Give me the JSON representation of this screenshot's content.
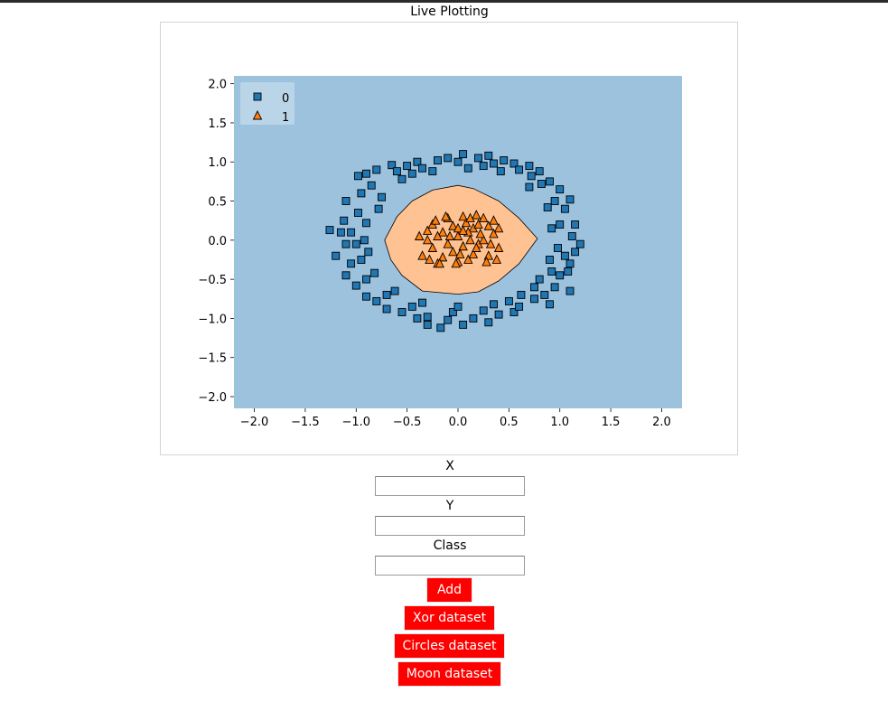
{
  "page": {
    "title": "Live Plotting"
  },
  "form": {
    "x_label": "X",
    "x_value": "",
    "y_label": "Y",
    "y_value": "",
    "class_label": "Class",
    "class_value": ""
  },
  "buttons": {
    "add": "Add",
    "xor": "Xor dataset",
    "circles": "Circles dataset",
    "moon": "Moon dataset"
  },
  "colors": {
    "region_0": "#9dc2de",
    "region_1": "#ffc393",
    "class_0": "#1f77b4",
    "class_1": "#ff7f0e",
    "button_bg": "#ff0000"
  },
  "chart_data": {
    "type": "scatter",
    "title": "",
    "xlabel": "",
    "ylabel": "",
    "xlim": [
      -2.2,
      2.2
    ],
    "ylim": [
      -2.15,
      2.1
    ],
    "xticks": [
      "−2.0",
      "−1.5",
      "−1.0",
      "−0.5",
      "0.0",
      "0.5",
      "1.0",
      "1.5",
      "2.0"
    ],
    "xtick_values": [
      -2.0,
      -1.5,
      -1.0,
      -0.5,
      0.0,
      0.5,
      1.0,
      1.5,
      2.0
    ],
    "yticks": [
      "2.0",
      "1.5",
      "1.0",
      "0.5",
      "0.0",
      "−0.5",
      "−1.0",
      "−1.5",
      "−2.0"
    ],
    "ytick_values": [
      2.0,
      1.5,
      1.0,
      0.5,
      0.0,
      -0.5,
      -1.0,
      -1.5,
      -2.0
    ],
    "grid": false,
    "legend": {
      "placement": "top-left",
      "entries": [
        {
          "label": "0",
          "marker": "square"
        },
        {
          "label": "1",
          "marker": "triangle"
        }
      ]
    },
    "decision_region_1": [
      [
        -0.72,
        0.0
      ],
      [
        -0.6,
        0.3
      ],
      [
        -0.45,
        0.5
      ],
      [
        -0.25,
        0.64
      ],
      [
        0.0,
        0.7
      ],
      [
        0.15,
        0.66
      ],
      [
        0.4,
        0.5
      ],
      [
        0.6,
        0.28
      ],
      [
        0.78,
        0.02
      ],
      [
        0.6,
        -0.3
      ],
      [
        0.4,
        -0.52
      ],
      [
        0.2,
        -0.66
      ],
      [
        0.0,
        -0.69
      ],
      [
        -0.35,
        -0.65
      ],
      [
        -0.55,
        -0.45
      ],
      [
        -0.66,
        -0.25
      ]
    ],
    "series": [
      {
        "name": "0",
        "marker": "square",
        "points": [
          [
            -1.26,
            0.13
          ],
          [
            -1.1,
            0.5
          ],
          [
            -0.9,
            0.85
          ],
          [
            -0.65,
            0.96
          ],
          [
            -0.4,
            1.0
          ],
          [
            -0.1,
            1.05
          ],
          [
            0.05,
            1.1
          ],
          [
            0.3,
            1.08
          ],
          [
            0.55,
            0.98
          ],
          [
            0.8,
            0.88
          ],
          [
            1.0,
            0.65
          ],
          [
            1.1,
            0.52
          ],
          [
            1.15,
            0.2
          ],
          [
            1.2,
            -0.05
          ],
          [
            1.1,
            -0.3
          ],
          [
            1.1,
            -0.65
          ],
          [
            0.95,
            -0.6
          ],
          [
            0.75,
            -0.75
          ],
          [
            0.55,
            -0.92
          ],
          [
            0.3,
            -1.05
          ],
          [
            0.05,
            -1.08
          ],
          [
            -0.17,
            -1.12
          ],
          [
            -0.4,
            -1.0
          ],
          [
            -0.7,
            -0.88
          ],
          [
            -0.9,
            -0.72
          ],
          [
            -1.1,
            -0.45
          ],
          [
            -1.2,
            -0.2
          ],
          [
            -1.05,
            0.1
          ],
          [
            -1.12,
            0.25
          ],
          [
            -0.95,
            0.6
          ],
          [
            -0.8,
            0.9
          ],
          [
            -0.5,
            0.95
          ],
          [
            -0.2,
            1.02
          ],
          [
            0.2,
            1.05
          ],
          [
            0.45,
            1.02
          ],
          [
            0.7,
            0.95
          ],
          [
            0.9,
            0.75
          ],
          [
            1.05,
            0.4
          ],
          [
            1.12,
            0.05
          ],
          [
            1.05,
            -0.2
          ],
          [
            1.0,
            -0.45
          ],
          [
            0.85,
            -0.7
          ],
          [
            0.6,
            -0.85
          ],
          [
            0.4,
            -0.95
          ],
          [
            0.15,
            -1.0
          ],
          [
            -0.1,
            -1.02
          ],
          [
            -0.3,
            -0.98
          ],
          [
            -0.55,
            -0.92
          ],
          [
            -0.8,
            -0.78
          ],
          [
            -1.0,
            -0.58
          ],
          [
            -1.05,
            -0.3
          ],
          [
            -1.0,
            -0.05
          ],
          [
            -0.98,
            0.35
          ],
          [
            -0.85,
            0.7
          ],
          [
            -0.6,
            0.88
          ],
          [
            -0.35,
            0.92
          ],
          [
            0.0,
            1.0
          ],
          [
            0.35,
            0.98
          ],
          [
            0.6,
            0.9
          ],
          [
            0.82,
            0.72
          ],
          [
            0.95,
            0.5
          ],
          [
            1.0,
            0.2
          ],
          [
            0.98,
            -0.1
          ],
          [
            0.92,
            -0.4
          ],
          [
            0.75,
            -0.6
          ],
          [
            0.5,
            -0.78
          ],
          [
            0.25,
            -0.9
          ],
          [
            -0.05,
            -0.92
          ],
          [
            -0.45,
            -0.85
          ],
          [
            -0.7,
            -0.7
          ],
          [
            -0.9,
            -0.5
          ],
          [
            -0.95,
            -0.25
          ],
          [
            -0.92,
            0.0
          ],
          [
            -0.9,
            0.22
          ],
          [
            -0.75,
            0.55
          ],
          [
            -0.55,
            0.78
          ],
          [
            -0.25,
            0.88
          ],
          [
            0.1,
            0.92
          ],
          [
            0.42,
            0.88
          ],
          [
            0.7,
            0.68
          ],
          [
            0.88,
            0.42
          ],
          [
            0.92,
            0.15
          ],
          [
            0.9,
            -0.25
          ],
          [
            0.8,
            -0.5
          ],
          [
            0.62,
            -0.7
          ],
          [
            0.35,
            -0.82
          ],
          [
            0.0,
            -0.85
          ],
          [
            -0.35,
            -0.8
          ],
          [
            -0.62,
            -0.65
          ],
          [
            -0.82,
            -0.42
          ],
          [
            -0.88,
            -0.15
          ],
          [
            -0.78,
            0.4
          ],
          [
            -0.45,
            0.85
          ],
          [
            0.25,
            0.95
          ],
          [
            0.72,
            0.82
          ],
          [
            1.15,
            -0.15
          ],
          [
            0.9,
            -0.82
          ],
          [
            -0.3,
            -1.08
          ],
          [
            -1.15,
            0.1
          ],
          [
            -1.1,
            -0.05
          ],
          [
            -0.98,
            0.82
          ],
          [
            1.08,
            -0.4
          ]
        ]
      },
      {
        "name": "1",
        "marker": "triangle",
        "points": [
          [
            -0.35,
            -0.2
          ],
          [
            -0.3,
            0.0
          ],
          [
            -0.25,
            0.2
          ],
          [
            -0.2,
            -0.3
          ],
          [
            -0.15,
            0.1
          ],
          [
            -0.1,
            0.28
          ],
          [
            -0.05,
            -0.15
          ],
          [
            0.0,
            0.05
          ],
          [
            0.05,
            0.3
          ],
          [
            0.1,
            -0.25
          ],
          [
            0.15,
            0.15
          ],
          [
            0.2,
            -0.05
          ],
          [
            0.25,
            0.28
          ],
          [
            0.3,
            -0.2
          ],
          [
            0.35,
            0.08
          ],
          [
            0.4,
            -0.1
          ],
          [
            -0.2,
            0.05
          ],
          [
            -0.1,
            -0.05
          ],
          [
            0.0,
            -0.28
          ],
          [
            0.1,
            0.1
          ],
          [
            0.2,
            0.2
          ],
          [
            0.3,
            0.18
          ],
          [
            -0.25,
            -0.1
          ],
          [
            -0.05,
            0.18
          ],
          [
            0.05,
            -0.08
          ],
          [
            0.15,
            -0.18
          ],
          [
            0.25,
            0.0
          ],
          [
            -0.15,
            -0.22
          ],
          [
            0.35,
            0.25
          ],
          [
            0.4,
            0.15
          ],
          [
            0.08,
            0.22
          ],
          [
            -0.3,
            0.12
          ],
          [
            -0.12,
            0.3
          ],
          [
            0.18,
            0.32
          ],
          [
            0.0,
            0.15
          ],
          [
            -0.08,
            0.05
          ],
          [
            0.12,
            0.0
          ],
          [
            0.28,
            -0.28
          ],
          [
            -0.18,
            -0.3
          ],
          [
            0.22,
            0.08
          ],
          [
            -0.28,
            -0.25
          ],
          [
            0.02,
            -0.18
          ],
          [
            0.32,
            -0.05
          ],
          [
            -0.22,
            0.25
          ],
          [
            0.38,
            -0.25
          ],
          [
            0.12,
            0.28
          ],
          [
            -0.38,
            0.05
          ],
          [
            0.05,
            0.12
          ],
          [
            -0.02,
            -0.3
          ],
          [
            0.18,
            -0.1
          ]
        ]
      }
    ]
  }
}
